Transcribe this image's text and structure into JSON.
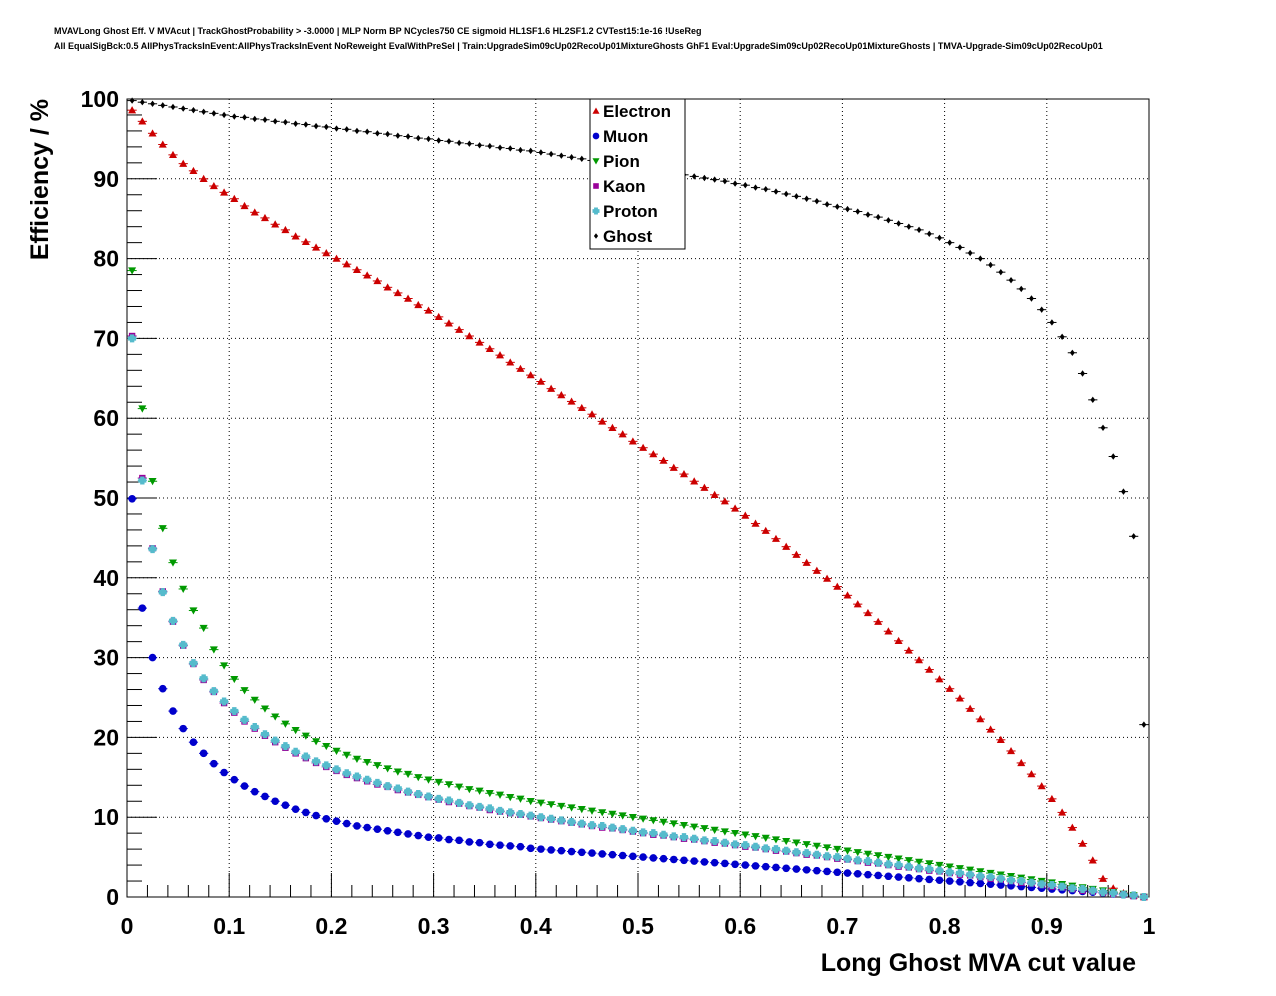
{
  "title": "MVAVLong Ghost Eff. V MVAcut | TrackGhostProbability > -3.0000 | MLP Norm BP NCycles750 CE sigmoid HL1SF1.6 HL2SF1.2 CVTest15:1e-16 !UseReg",
  "subtitle": "All EqualSigBck:0.5 AllPhysTracksInEvent:AllPhysTracksInEvent NoReweight EvalWithPreSel | Train:UpgradeSim09cUp02RecoUp01MixtureGhosts GhF1 Eval:UpgradeSim09cUp02RecoUp01MixtureGhosts | TMVA-Upgrade-Sim09cUp02RecoUp01",
  "chart_data": {
    "type": "scatter",
    "xlabel": "Long Ghost MVA cut value",
    "ylabel": "Efficiency / %",
    "xlim": [
      0,
      1
    ],
    "ylim": [
      0,
      100
    ],
    "grid": true,
    "legend_position": "top-center",
    "x_ticks": [
      "0",
      "0.1",
      "0.2",
      "0.3",
      "0.4",
      "0.5",
      "0.6",
      "0.7",
      "0.8",
      "0.9",
      "1"
    ],
    "y_ticks": [
      "0",
      "10",
      "20",
      "30",
      "40",
      "50",
      "60",
      "70",
      "80",
      "90",
      "100"
    ],
    "x": [
      0.005,
      0.015,
      0.025,
      0.035,
      0.045,
      0.055,
      0.065,
      0.075,
      0.085,
      0.095,
      0.105,
      0.115,
      0.125,
      0.135,
      0.145,
      0.155,
      0.165,
      0.175,
      0.185,
      0.195,
      0.205,
      0.215,
      0.225,
      0.235,
      0.245,
      0.255,
      0.265,
      0.275,
      0.285,
      0.295,
      0.305,
      0.315,
      0.325,
      0.335,
      0.345,
      0.355,
      0.365,
      0.375,
      0.385,
      0.395,
      0.405,
      0.415,
      0.425,
      0.435,
      0.445,
      0.455,
      0.465,
      0.475,
      0.485,
      0.495,
      0.505,
      0.515,
      0.525,
      0.535,
      0.545,
      0.555,
      0.565,
      0.575,
      0.585,
      0.595,
      0.605,
      0.615,
      0.625,
      0.635,
      0.645,
      0.655,
      0.665,
      0.675,
      0.685,
      0.695,
      0.705,
      0.715,
      0.725,
      0.735,
      0.745,
      0.755,
      0.765,
      0.775,
      0.785,
      0.795,
      0.805,
      0.815,
      0.825,
      0.835,
      0.845,
      0.855,
      0.865,
      0.875,
      0.885,
      0.895,
      0.905,
      0.915,
      0.925,
      0.935,
      0.945,
      0.955,
      0.965,
      0.975,
      0.985,
      0.995
    ],
    "series": [
      {
        "name": "Electron",
        "color": "#cc0000",
        "marker": "triangle-up",
        "values": [
          98.6,
          97.2,
          95.7,
          94.3,
          93.0,
          91.9,
          91.0,
          90.0,
          89.1,
          88.3,
          87.5,
          86.6,
          85.8,
          85.1,
          84.3,
          83.6,
          82.8,
          82.1,
          81.4,
          80.7,
          80.0,
          79.3,
          78.6,
          77.9,
          77.2,
          76.4,
          75.7,
          75.0,
          74.2,
          73.5,
          72.7,
          71.9,
          71.1,
          70.3,
          69.5,
          68.7,
          67.9,
          67.0,
          66.2,
          65.4,
          64.6,
          63.7,
          62.9,
          62.1,
          61.3,
          60.5,
          59.6,
          58.8,
          58.0,
          57.1,
          56.3,
          55.5,
          54.7,
          53.8,
          53.0,
          52.1,
          51.3,
          50.4,
          49.6,
          48.7,
          47.8,
          46.8,
          45.9,
          44.9,
          43.9,
          42.9,
          41.9,
          40.9,
          39.9,
          38.9,
          37.8,
          36.7,
          35.6,
          34.5,
          33.3,
          32.1,
          30.9,
          29.7,
          28.5,
          27.3,
          26.1,
          24.9,
          23.6,
          22.3,
          21.0,
          19.7,
          18.3,
          16.8,
          15.4,
          13.9,
          12.3,
          10.6,
          8.7,
          6.7,
          4.6,
          2.3,
          1.1,
          0.5,
          0.2,
          0.0
        ]
      },
      {
        "name": "Muon",
        "color": "#0000cc",
        "marker": "circle",
        "values": [
          49.9,
          36.2,
          30.0,
          26.1,
          23.3,
          21.1,
          19.4,
          18.0,
          16.7,
          15.6,
          14.7,
          13.9,
          13.2,
          12.6,
          12.0,
          11.5,
          11.0,
          10.6,
          10.2,
          9.8,
          9.5,
          9.2,
          8.9,
          8.7,
          8.5,
          8.3,
          8.1,
          7.9,
          7.7,
          7.5,
          7.4,
          7.2,
          7.1,
          6.9,
          6.8,
          6.6,
          6.5,
          6.4,
          6.3,
          6.1,
          6.0,
          5.9,
          5.8,
          5.7,
          5.6,
          5.5,
          5.4,
          5.3,
          5.2,
          5.1,
          5.0,
          4.9,
          4.8,
          4.7,
          4.6,
          4.5,
          4.4,
          4.3,
          4.2,
          4.1,
          4.0,
          3.9,
          3.8,
          3.7,
          3.6,
          3.5,
          3.4,
          3.3,
          3.2,
          3.1,
          3.0,
          2.9,
          2.8,
          2.7,
          2.6,
          2.5,
          2.4,
          2.3,
          2.2,
          2.1,
          2.0,
          1.9,
          1.8,
          1.7,
          1.6,
          1.5,
          1.4,
          1.3,
          1.2,
          1.1,
          1.0,
          0.9,
          0.8,
          0.7,
          0.6,
          0.5,
          0.4,
          0.3,
          0.2,
          0.0
        ]
      },
      {
        "name": "Pion",
        "color": "#009900",
        "marker": "triangle-down",
        "values": [
          78.5,
          61.2,
          52.1,
          46.2,
          41.9,
          38.6,
          35.9,
          33.7,
          31.0,
          29.0,
          27.3,
          25.9,
          24.7,
          23.6,
          22.6,
          21.7,
          20.9,
          20.2,
          19.5,
          18.9,
          18.3,
          17.8,
          17.3,
          16.9,
          16.5,
          16.1,
          15.7,
          15.4,
          15.0,
          14.7,
          14.4,
          14.1,
          13.8,
          13.5,
          13.3,
          13.0,
          12.8,
          12.5,
          12.3,
          12.0,
          11.8,
          11.6,
          11.4,
          11.2,
          11.0,
          10.8,
          10.6,
          10.4,
          10.2,
          10.0,
          9.8,
          9.6,
          9.4,
          9.2,
          9.0,
          8.8,
          8.6,
          8.4,
          8.2,
          8.0,
          7.8,
          7.6,
          7.4,
          7.2,
          7.0,
          6.8,
          6.6,
          6.4,
          6.2,
          6.0,
          5.8,
          5.6,
          5.4,
          5.2,
          5.0,
          4.8,
          4.6,
          4.4,
          4.2,
          4.0,
          3.8,
          3.6,
          3.4,
          3.2,
          3.0,
          2.8,
          2.6,
          2.4,
          2.2,
          2.0,
          1.8,
          1.6,
          1.4,
          1.2,
          1.0,
          0.8,
          0.6,
          0.4,
          0.2,
          0.0
        ]
      },
      {
        "name": "Kaon",
        "color": "#990099",
        "marker": "square",
        "values": [
          70.3,
          52.5,
          43.7,
          38.3,
          34.5,
          31.5,
          29.2,
          27.2,
          25.7,
          24.3,
          23.1,
          22.0,
          21.1,
          20.2,
          19.4,
          18.7,
          18.0,
          17.4,
          16.8,
          16.3,
          15.8,
          15.3,
          14.9,
          14.5,
          14.1,
          13.8,
          13.4,
          13.1,
          12.8,
          12.5,
          12.2,
          11.9,
          11.7,
          11.4,
          11.2,
          10.9,
          10.7,
          10.5,
          10.3,
          10.1,
          9.9,
          9.7,
          9.5,
          9.3,
          9.1,
          8.9,
          8.7,
          8.6,
          8.4,
          8.2,
          8.0,
          7.8,
          7.7,
          7.5,
          7.3,
          7.2,
          7.0,
          6.8,
          6.7,
          6.5,
          6.3,
          6.2,
          6.0,
          5.8,
          5.7,
          5.5,
          5.3,
          5.2,
          5.0,
          4.8,
          4.7,
          4.5,
          4.3,
          4.2,
          4.0,
          3.8,
          3.7,
          3.5,
          3.3,
          3.2,
          3.0,
          2.8,
          2.7,
          2.5,
          2.3,
          2.2,
          2.0,
          1.8,
          1.7,
          1.5,
          1.3,
          1.2,
          1.0,
          0.8,
          0.7,
          0.5,
          0.4,
          0.3,
          0.1,
          0.0
        ]
      },
      {
        "name": "Proton",
        "color": "#55bbcc",
        "marker": "cross",
        "values": [
          70.0,
          52.2,
          43.6,
          38.2,
          34.6,
          31.6,
          29.3,
          27.4,
          25.8,
          24.5,
          23.3,
          22.2,
          21.3,
          20.4,
          19.6,
          18.9,
          18.2,
          17.6,
          17.0,
          16.5,
          16.0,
          15.5,
          15.1,
          14.7,
          14.3,
          13.9,
          13.6,
          13.2,
          12.9,
          12.6,
          12.3,
          12.1,
          11.8,
          11.5,
          11.3,
          11.1,
          10.8,
          10.6,
          10.4,
          10.2,
          10.0,
          9.8,
          9.6,
          9.4,
          9.2,
          9.0,
          8.9,
          8.7,
          8.5,
          8.3,
          8.1,
          8.0,
          7.8,
          7.6,
          7.5,
          7.3,
          7.1,
          7.0,
          6.8,
          6.6,
          6.5,
          6.3,
          6.1,
          6.0,
          5.8,
          5.6,
          5.5,
          5.3,
          5.1,
          5.0,
          4.8,
          4.6,
          4.5,
          4.3,
          4.1,
          4.0,
          3.8,
          3.6,
          3.5,
          3.3,
          3.1,
          3.0,
          2.8,
          2.6,
          2.5,
          2.3,
          2.1,
          2.0,
          1.8,
          1.6,
          1.5,
          1.3,
          1.1,
          1.0,
          0.8,
          0.6,
          0.5,
          0.3,
          0.2,
          0.0
        ]
      },
      {
        "name": "Ghost",
        "color": "#000000",
        "marker": "diamond",
        "values": [
          99.8,
          99.6,
          99.4,
          99.2,
          99.0,
          98.8,
          98.6,
          98.4,
          98.2,
          98.0,
          97.8,
          97.7,
          97.5,
          97.4,
          97.2,
          97.1,
          96.9,
          96.8,
          96.6,
          96.5,
          96.3,
          96.2,
          96.0,
          95.9,
          95.7,
          95.6,
          95.4,
          95.3,
          95.1,
          95.0,
          94.8,
          94.7,
          94.5,
          94.4,
          94.2,
          94.1,
          93.9,
          93.8,
          93.6,
          93.5,
          93.3,
          93.1,
          92.9,
          92.7,
          92.5,
          92.3,
          92.1,
          91.9,
          91.7,
          91.5,
          91.3,
          91.1,
          90.9,
          90.7,
          90.5,
          90.3,
          90.1,
          89.9,
          89.7,
          89.4,
          89.2,
          88.9,
          88.7,
          88.4,
          88.1,
          87.8,
          87.5,
          87.2,
          86.8,
          86.5,
          86.2,
          85.9,
          85.5,
          85.2,
          84.8,
          84.4,
          84.0,
          83.6,
          83.1,
          82.6,
          82.0,
          81.4,
          80.7,
          80.0,
          79.2,
          78.3,
          77.3,
          76.2,
          75.0,
          73.6,
          72.0,
          70.2,
          68.2,
          65.6,
          62.3,
          58.8,
          55.2,
          50.8,
          45.2,
          21.6
        ]
      }
    ]
  }
}
